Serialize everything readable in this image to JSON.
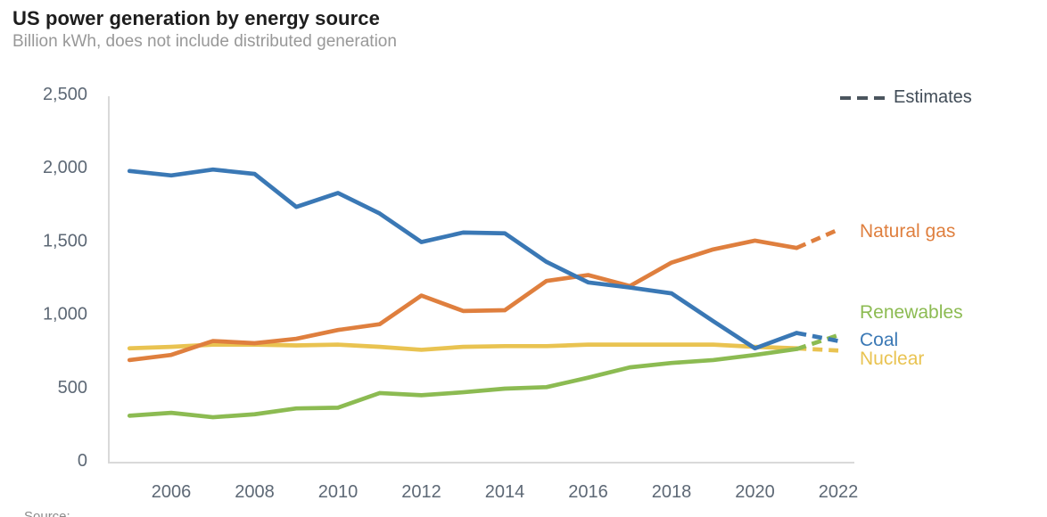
{
  "header": {
    "title": "US power generation by energy source",
    "subtitle": "Billion kWh, does not include distributed generation"
  },
  "footer": {
    "source_fragment": "Source:"
  },
  "chart_data": {
    "type": "line",
    "title": "US power generation by energy source",
    "subtitle": "Billion kWh, does not include distributed generation",
    "ylabel": "Billion kWh",
    "xlabel": "",
    "grid": false,
    "legend_position": "right-of-lines",
    "xlim": [
      2005,
      2022
    ],
    "ylim": [
      0,
      2500
    ],
    "years": [
      2005,
      2006,
      2007,
      2008,
      2009,
      2010,
      2011,
      2012,
      2013,
      2014,
      2015,
      2016,
      2017,
      2018,
      2019,
      2020,
      2021,
      2022
    ],
    "x_ticks": [
      2006,
      2008,
      2010,
      2012,
      2014,
      2016,
      2018,
      2020,
      2022
    ],
    "x_tick_labels": [
      "2006",
      "2008",
      "2010",
      "2012",
      "2014",
      "2016",
      "2018",
      "2020",
      "2022"
    ],
    "y_ticks": [
      0,
      500,
      1000,
      1500,
      2000,
      2500
    ],
    "y_tick_labels": [
      "0",
      "500",
      "1,000",
      "1,500",
      "2,000",
      "2,500"
    ],
    "estimates_label": "Estimates",
    "estimates_from_year": 2021,
    "series": [
      {
        "name": "Nuclear",
        "color": "#e9c351",
        "values": [
          780,
          790,
          805,
          805,
          800,
          805,
          790,
          770,
          790,
          795,
          795,
          805,
          805,
          805,
          805,
          790,
          780,
          765
        ]
      },
      {
        "name": "Renewables",
        "color": "#8cbb52",
        "values": [
          320,
          340,
          310,
          330,
          370,
          375,
          475,
          460,
          480,
          505,
          515,
          580,
          650,
          680,
          700,
          735,
          775,
          870
        ]
      },
      {
        "name": "Natural gas",
        "color": "#df7f3e",
        "values": [
          700,
          735,
          830,
          815,
          845,
          905,
          945,
          1140,
          1035,
          1040,
          1240,
          1280,
          1205,
          1365,
          1455,
          1515,
          1465,
          1590
        ]
      },
      {
        "name": "Coal",
        "color": "#3a78b5",
        "values": [
          1990,
          1960,
          2000,
          1970,
          1745,
          1840,
          1700,
          1505,
          1570,
          1565,
          1370,
          1230,
          1195,
          1155,
          965,
          780,
          885,
          830
        ]
      }
    ]
  }
}
